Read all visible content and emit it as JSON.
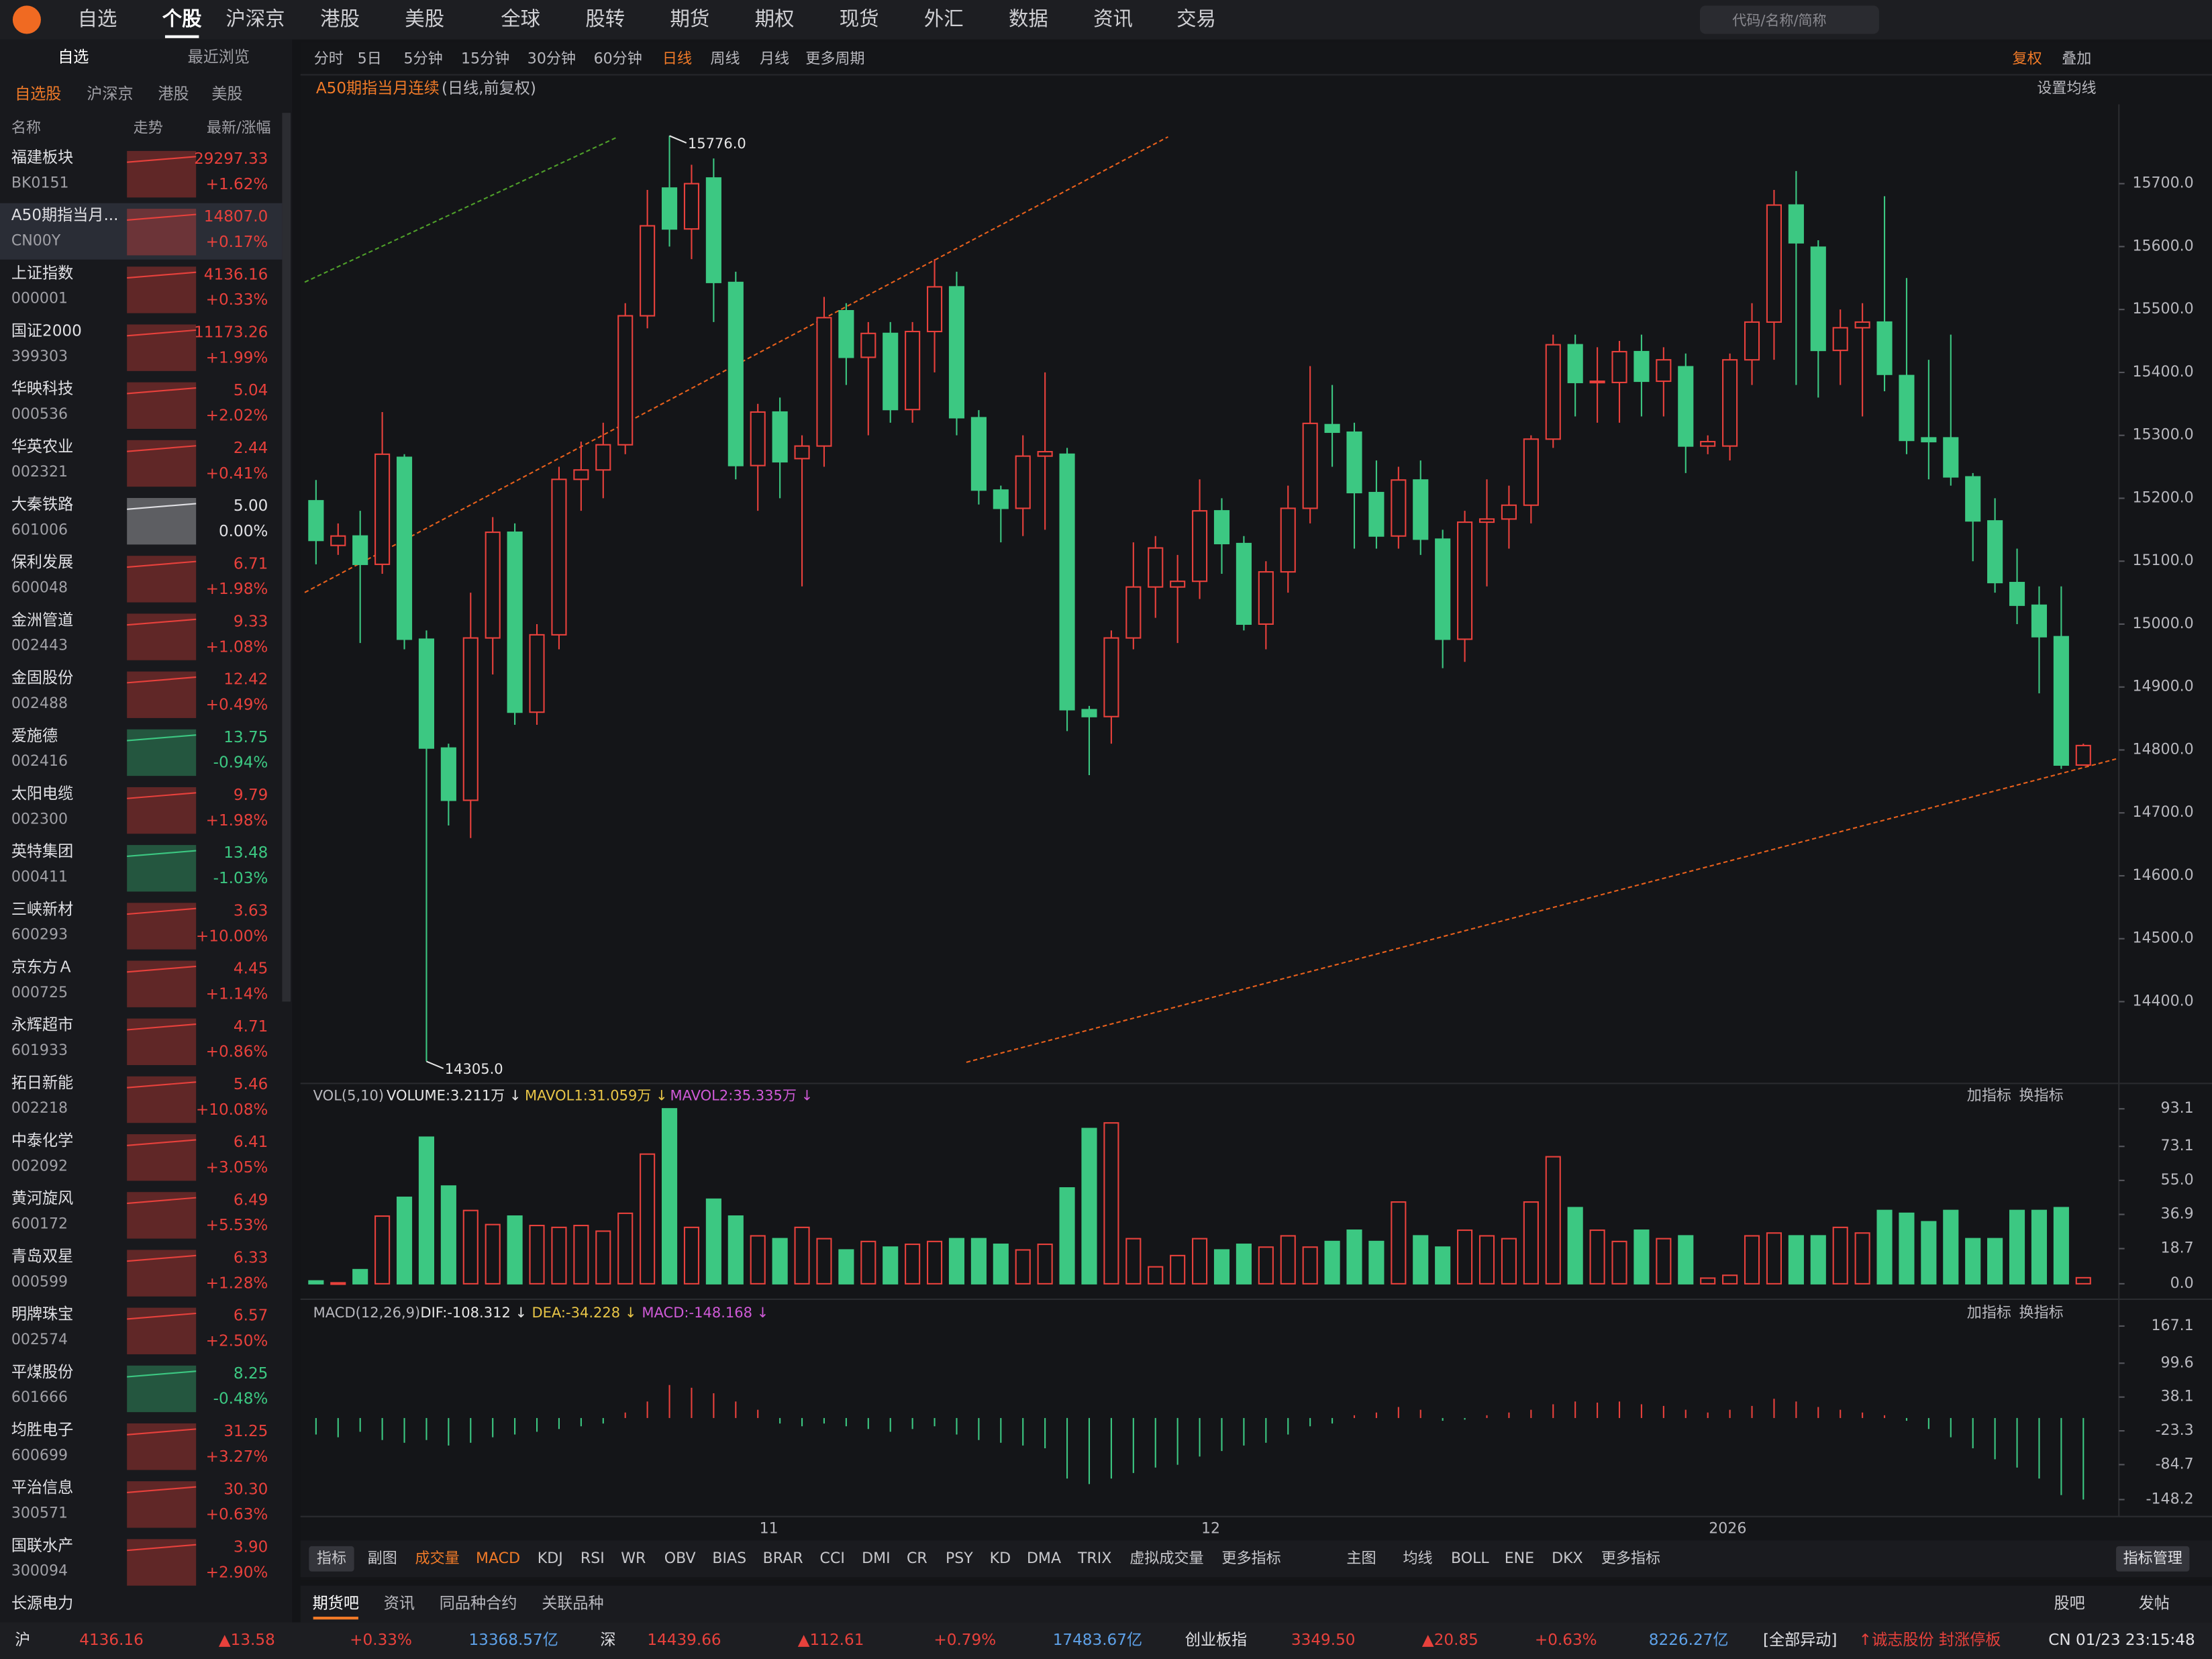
{
  "nav": {
    "items": [
      "自选",
      "个股",
      "沪深京",
      "港股",
      "美股",
      "全球",
      "股转",
      "期货",
      "期权",
      "现货",
      "外汇",
      "数据",
      "资讯",
      "交易"
    ],
    "search_placeholder": "代码/名称/简称"
  },
  "sidebar": {
    "tabs": [
      "自选",
      "最近浏览"
    ],
    "subtabs": [
      "自选股",
      "沪深京",
      "港股",
      "美股"
    ],
    "columns": [
      "名称",
      "走势",
      "最新/涨幅"
    ],
    "rows": [
      {
        "name": "福建板块",
        "code": "BK0151",
        "price": "29297.33",
        "change": "+1.62%"
      },
      {
        "name": "A50期指当月...",
        "code": "CN00Y",
        "price": "14807.0",
        "change": "+0.17%"
      },
      {
        "name": "上证指数",
        "code": "000001",
        "price": "4136.16",
        "change": "+0.33%"
      },
      {
        "name": "国证2000",
        "code": "399303",
        "price": "11173.26",
        "change": "+1.99%"
      },
      {
        "name": "华映科技",
        "code": "000536",
        "price": "5.04",
        "change": "+2.02%"
      },
      {
        "name": "华英农业",
        "code": "002321",
        "price": "2.44",
        "change": "+0.41%"
      },
      {
        "name": "大秦铁路",
        "code": "601006",
        "price": "5.00",
        "change": "0.00%"
      },
      {
        "name": "保利发展",
        "code": "600048",
        "price": "6.71",
        "change": "+1.98%"
      },
      {
        "name": "金洲管道",
        "code": "002443",
        "price": "9.33",
        "change": "+1.08%"
      },
      {
        "name": "金固股份",
        "code": "002488",
        "price": "12.42",
        "change": "+0.49%"
      },
      {
        "name": "爱施德",
        "code": "002416",
        "price": "13.75",
        "change": "-0.94%"
      },
      {
        "name": "太阳电缆",
        "code": "002300",
        "price": "9.79",
        "change": "+1.98%"
      },
      {
        "name": "英特集团",
        "code": "000411",
        "price": "13.48",
        "change": "-1.03%"
      },
      {
        "name": "三峡新材",
        "code": "600293",
        "price": "3.63",
        "change": "+10.00%"
      },
      {
        "name": "京东方Ａ",
        "code": "000725",
        "price": "4.45",
        "change": "+1.14%"
      },
      {
        "name": "永辉超市",
        "code": "601933",
        "price": "4.71",
        "change": "+0.86%"
      },
      {
        "name": "拓日新能",
        "code": "002218",
        "price": "5.46",
        "change": "+10.08%"
      },
      {
        "name": "中泰化学",
        "code": "002092",
        "price": "6.41",
        "change": "+3.05%"
      },
      {
        "name": "黄河旋风",
        "code": "600172",
        "price": "6.49",
        "change": "+5.53%"
      },
      {
        "name": "青岛双星",
        "code": "000599",
        "price": "6.33",
        "change": "+1.28%"
      },
      {
        "name": "明牌珠宝",
        "code": "002574",
        "price": "6.57",
        "change": "+2.50%"
      },
      {
        "name": "平煤股份",
        "code": "601666",
        "price": "8.25",
        "change": "-0.48%"
      },
      {
        "name": "均胜电子",
        "code": "600699",
        "price": "31.25",
        "change": "+3.27%"
      },
      {
        "name": "平治信息",
        "code": "300571",
        "price": "30.30",
        "change": "+0.63%"
      },
      {
        "name": "国联水产",
        "code": "300094",
        "price": "3.90",
        "change": "+2.90%"
      },
      {
        "name": "长源电力"
      }
    ]
  },
  "toolbar": {
    "periods": [
      "分时",
      "5日",
      "5分钟",
      "15分钟",
      "30分钟",
      "60分钟",
      "日线",
      "周线",
      "月线",
      "更多周期"
    ],
    "right": [
      "复权",
      "叠加"
    ],
    "ma_setting": "设置均线"
  },
  "chart_data": {
    "type": "candlestick",
    "title": "A50期指当月连续",
    "subtitle": "(日线,前复权)",
    "up_color": "#e8413c",
    "down_color": "#3cc882",
    "ylim": [
      14270,
      15817
    ],
    "yticks": [
      {
        "value": 14400,
        "label": "14400.0"
      },
      {
        "value": 14500,
        "label": "14500.0"
      },
      {
        "value": 14600,
        "label": "14600.0"
      },
      {
        "value": 14700,
        "label": "14700.0"
      },
      {
        "value": 14800,
        "label": "14800.0"
      },
      {
        "value": 14900,
        "label": "14900.0"
      },
      {
        "value": 15000,
        "label": "15000.0"
      },
      {
        "value": 15100,
        "label": "15100.0"
      },
      {
        "value": 15200,
        "label": "15200.0"
      },
      {
        "value": 15300,
        "label": "15300.0"
      },
      {
        "value": 15400,
        "label": "15400.0"
      },
      {
        "value": 15500,
        "label": "15500.0"
      },
      {
        "value": 15600,
        "label": "15600.0"
      },
      {
        "value": 15700,
        "label": "15700.0"
      }
    ],
    "xticks": [
      {
        "value": 20.5,
        "label": "11"
      },
      {
        "value": 40.5,
        "label": "12"
      },
      {
        "value": 63.9,
        "label": "2026"
      }
    ],
    "ohlc": [
      [
        15196,
        15229,
        15095,
        15133
      ],
      [
        15125,
        15160,
        15110,
        15140
      ],
      [
        15140,
        15180,
        14970,
        15095
      ],
      [
        15095,
        15337,
        15080,
        15270
      ],
      [
        15265,
        15270,
        14960,
        14976
      ],
      [
        14976,
        14990,
        14305,
        14803
      ],
      [
        14803,
        14810,
        14680,
        14720
      ],
      [
        14720,
        15050,
        14660,
        14978
      ],
      [
        14978,
        15170,
        14920,
        15146
      ],
      [
        15146,
        15160,
        14840,
        14860
      ],
      [
        14860,
        15000,
        14840,
        14983
      ],
      [
        14983,
        15250,
        14960,
        15230
      ],
      [
        15230,
        15290,
        15180,
        15245
      ],
      [
        15245,
        15320,
        15200,
        15285
      ],
      [
        15285,
        15510,
        15270,
        15490
      ],
      [
        15490,
        15690,
        15470,
        15633
      ],
      [
        15693,
        15776,
        15600,
        15628
      ],
      [
        15628,
        15730,
        15580,
        15700
      ],
      [
        15709,
        15740,
        15480,
        15543
      ],
      [
        15543,
        15560,
        15230,
        15252
      ],
      [
        15252,
        15350,
        15180,
        15337
      ],
      [
        15337,
        15360,
        15200,
        15258
      ],
      [
        15263,
        15300,
        15060,
        15283
      ],
      [
        15283,
        15520,
        15250,
        15487
      ],
      [
        15498,
        15510,
        15380,
        15424
      ],
      [
        15424,
        15480,
        15300,
        15462
      ],
      [
        15462,
        15480,
        15320,
        15341
      ],
      [
        15341,
        15480,
        15320,
        15465
      ],
      [
        15465,
        15580,
        15400,
        15536
      ],
      [
        15536,
        15560,
        15300,
        15328
      ],
      [
        15328,
        15340,
        15190,
        15213
      ],
      [
        15213,
        15220,
        15130,
        15184
      ],
      [
        15184,
        15300,
        15140,
        15267
      ],
      [
        15267,
        15400,
        15150,
        15274
      ],
      [
        15270,
        15280,
        14830,
        14864
      ],
      [
        14864,
        14870,
        14760,
        14853
      ],
      [
        14853,
        14990,
        14810,
        14978
      ],
      [
        14978,
        15130,
        14960,
        15059
      ],
      [
        15059,
        15140,
        15010,
        15121
      ],
      [
        15059,
        15110,
        14970,
        15068
      ],
      [
        15068,
        15230,
        15040,
        15180
      ],
      [
        15180,
        15200,
        15080,
        15128
      ],
      [
        15128,
        15140,
        14990,
        15000
      ],
      [
        15000,
        15100,
        14960,
        15083
      ],
      [
        15083,
        15220,
        15050,
        15184
      ],
      [
        15184,
        15410,
        15160,
        15319
      ],
      [
        15317,
        15380,
        15250,
        15305
      ],
      [
        15305,
        15320,
        15120,
        15209
      ],
      [
        15209,
        15260,
        15120,
        15140
      ],
      [
        15140,
        15250,
        15120,
        15229
      ],
      [
        15229,
        15260,
        15110,
        15135
      ],
      [
        15135,
        15150,
        14930,
        14976
      ],
      [
        14976,
        15180,
        14940,
        15162
      ],
      [
        15162,
        15230,
        15060,
        15167
      ],
      [
        15167,
        15220,
        15120,
        15189
      ],
      [
        15189,
        15300,
        15160,
        15294
      ],
      [
        15294,
        15460,
        15280,
        15444
      ],
      [
        15444,
        15460,
        15330,
        15384
      ],
      [
        15384,
        15440,
        15320,
        15386
      ],
      [
        15384,
        15450,
        15320,
        15433
      ],
      [
        15433,
        15460,
        15330,
        15386
      ],
      [
        15386,
        15440,
        15330,
        15420
      ],
      [
        15409,
        15430,
        15240,
        15283
      ],
      [
        15283,
        15300,
        15270,
        15290
      ],
      [
        15283,
        15430,
        15260,
        15420
      ],
      [
        15420,
        15510,
        15380,
        15480
      ],
      [
        15480,
        15690,
        15420,
        15666
      ],
      [
        15666,
        15720,
        15380,
        15606
      ],
      [
        15599,
        15610,
        15360,
        15435
      ],
      [
        15435,
        15500,
        15380,
        15471
      ],
      [
        15471,
        15510,
        15330,
        15480
      ],
      [
        15480,
        15680,
        15370,
        15397
      ],
      [
        15395,
        15550,
        15270,
        15292
      ],
      [
        15296,
        15420,
        15230,
        15290
      ],
      [
        15296,
        15460,
        15220,
        15234
      ],
      [
        15234,
        15240,
        15100,
        15164
      ],
      [
        15164,
        15200,
        15050,
        15066
      ],
      [
        15066,
        15120,
        15000,
        15030
      ],
      [
        15030,
        15060,
        14890,
        14980
      ],
      [
        14980,
        15060,
        14770,
        14776
      ],
      [
        14776,
        14810,
        14780,
        14807
      ]
    ],
    "annotations": [
      {
        "index": 16,
        "value": 15776,
        "label": "15776.0"
      },
      {
        "index": 5,
        "value": 14305,
        "label": "14305.0"
      }
    ],
    "volume": {
      "indicator": "VOL(5,10)",
      "legend": [
        "VOLUME:3.211万 ↓",
        "MAVOL1:31.059万 ↓",
        "MAVOL2:35.335万 ↓"
      ],
      "legend_colors": [
        "#e6e6e6",
        "#e8c547",
        "#d05ad8"
      ],
      "ylim": [
        0,
        93.1
      ],
      "yticks": [
        {
          "value": 0,
          "label": "0.0"
        },
        18.7,
        36.9,
        {
          "value": 55,
          "label": "55.0"
        },
        73.1,
        93.1
      ],
      "values": [
        1.5,
        0.5,
        7.5,
        36,
        46,
        78,
        52,
        39,
        31.5,
        36,
        31,
        30,
        31,
        28,
        37.5,
        69,
        93.1,
        30,
        45,
        36,
        25.5,
        24,
        30,
        24,
        18,
        22.5,
        19.5,
        21,
        22.5,
        24,
        24,
        21,
        18,
        21,
        51,
        82.6,
        85.6,
        24,
        9,
        15,
        24,
        18,
        21,
        19.5,
        25.5,
        19.5,
        22.5,
        28.5,
        22.5,
        43.5,
        25.5,
        19.5,
        28.5,
        25.5,
        24,
        43.5,
        67.6,
        40.5,
        28.5,
        22.5,
        28.5,
        24,
        25.5,
        3,
        4.5,
        25.5,
        27,
        25.5,
        25.5,
        30,
        27,
        39,
        37.5,
        33,
        39,
        24,
        24,
        39,
        39,
        40.5,
        3.211
      ]
    },
    "macd": {
      "indicator": "MACD(12,26,9)",
      "legend": [
        "DIF:-108.312 ↓",
        "DEA:-34.228 ↓",
        "MACD:-148.168 ↓"
      ],
      "legend_colors": [
        "#e6e6e6",
        "#e8c547",
        "#d05ad8"
      ],
      "ylim": [
        -171.3,
        179.9
      ],
      "yticks": [
        -148.2,
        -84.7,
        -23.3,
        38.1,
        99.6,
        167.1
      ],
      "values": [
        -30,
        -35,
        -25,
        -40,
        -45,
        -40,
        -50,
        -45,
        -35,
        -30,
        -25,
        -20,
        -15,
        -10,
        10,
        30,
        60,
        55,
        45,
        30,
        15,
        -10,
        -15,
        -10,
        -15,
        -20,
        -25,
        -20,
        -15,
        -30,
        -40,
        -45,
        -50,
        -55,
        -110,
        -120,
        -110,
        -100,
        -90,
        -85,
        -70,
        -60,
        -50,
        -45,
        -30,
        -15,
        -10,
        5,
        10,
        20,
        15,
        -5,
        -3,
        5,
        10,
        15,
        25,
        30,
        28,
        30,
        25,
        22,
        15,
        10,
        15,
        22,
        35,
        30,
        20,
        15,
        10,
        5,
        -5,
        -20,
        -35,
        -55,
        -75,
        -90,
        -110,
        -140,
        -148.168
      ]
    },
    "panel_buttons": [
      "加指标",
      "换指标"
    ]
  },
  "indicator_bar": {
    "left": [
      "指标",
      "副图",
      "成交量",
      "MACD",
      "KDJ",
      "RSI",
      "WR",
      "OBV",
      "BIAS",
      "BRAR",
      "CCI",
      "DMI",
      "CR",
      "PSY",
      "KD",
      "DMA",
      "TRIX",
      "虚拟成交量",
      "更多指标"
    ],
    "right": [
      "主图",
      "均线",
      "BOLL",
      "ENE",
      "DKX",
      "更多指标"
    ],
    "manage": "指标管理"
  },
  "bottom_tabs": {
    "left": [
      "期货吧",
      "资讯",
      "同品种合约",
      "关联品种"
    ],
    "right": [
      "股吧",
      "发帖"
    ]
  },
  "status_bar": [
    "沪",
    "4136.16",
    "▲13.58",
    "+0.33%",
    "13368.57亿",
    "深",
    "14439.66",
    "▲112.61",
    "+0.79%",
    "17483.67亿",
    "创业板指",
    "3349.50",
    "▲20.85",
    "+0.63%",
    "8226.27亿",
    "[全部异动]",
    "↑诚志股份 封涨停板",
    "CN 01/23 23:15:48"
  ]
}
